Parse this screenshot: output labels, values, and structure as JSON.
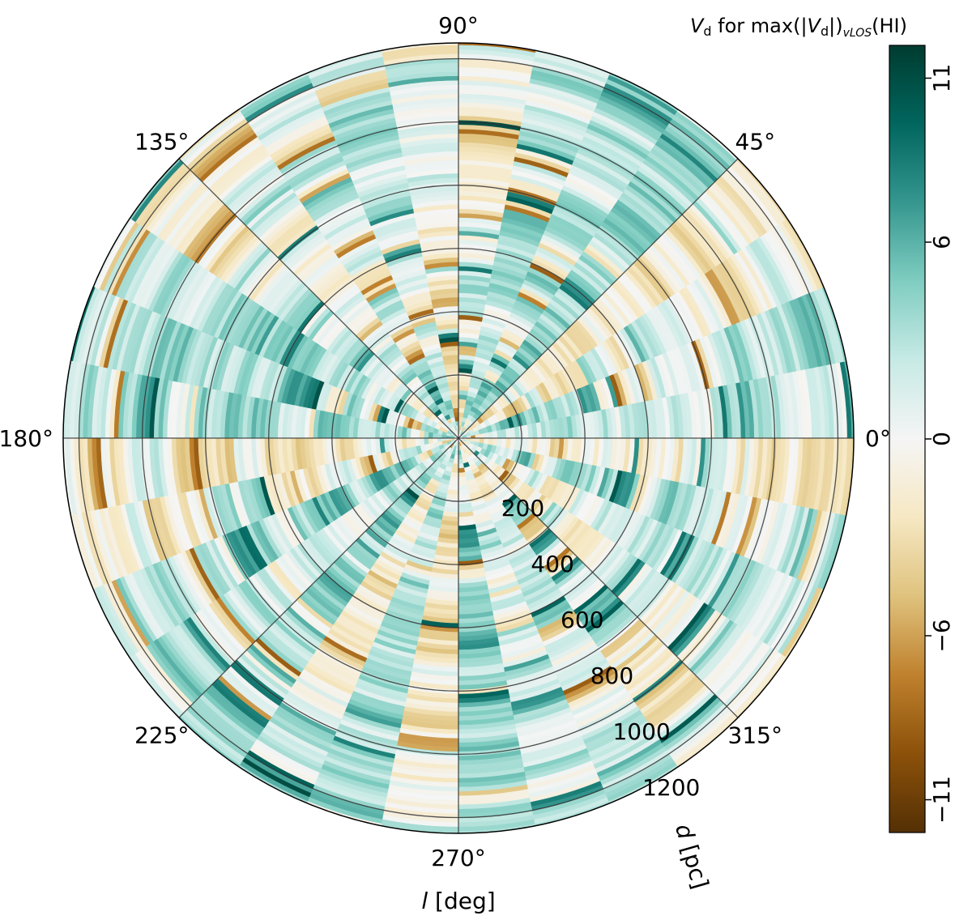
{
  "chart_data": {
    "type": "heatmap",
    "projection": "polar",
    "title": "",
    "colorbar_label": "V_d for max(|V_d|)_vLOS(HI)",
    "colorbar_label_parts": {
      "v": "V",
      "d": "d",
      "mid": " for max(|",
      "v2": "V",
      "d2": "d",
      "close": "|)",
      "los": "vLOS",
      "hi": "(HI)"
    },
    "xlabel": "l [deg]",
    "ylabel": "d [pc]",
    "angle_ticks_deg": [
      0,
      45,
      90,
      135,
      180,
      225,
      270,
      315
    ],
    "angle_tick_labels": [
      "0°",
      "45°",
      "90°",
      "135°",
      "180°",
      "225°",
      "270°",
      "315°"
    ],
    "radial_ticks": [
      200,
      400,
      600,
      800,
      1000,
      1200
    ],
    "radial_tick_labels": [
      "200",
      "400",
      "600",
      "800",
      "1000",
      "1200"
    ],
    "rlim": [
      0,
      1250
    ],
    "angle_sector_width_deg": 11.25,
    "colorbar_ticks": [
      -11,
      -6,
      0,
      6,
      11
    ],
    "colorbar_tick_labels": [
      "−11",
      "−6",
      "0",
      "6",
      "11"
    ],
    "clim": [
      -12,
      12
    ],
    "colormap": "BrBG",
    "colormap_stops": [
      "#543005",
      "#8c510a",
      "#bf812d",
      "#dfc27d",
      "#f6e8c3",
      "#f5f5f5",
      "#c7eae5",
      "#80cdc1",
      "#35978f",
      "#01665e",
      "#003c30"
    ],
    "grid": true,
    "value_map": "Vd value per (longitude sector, distance ring); estimated from image"
  }
}
